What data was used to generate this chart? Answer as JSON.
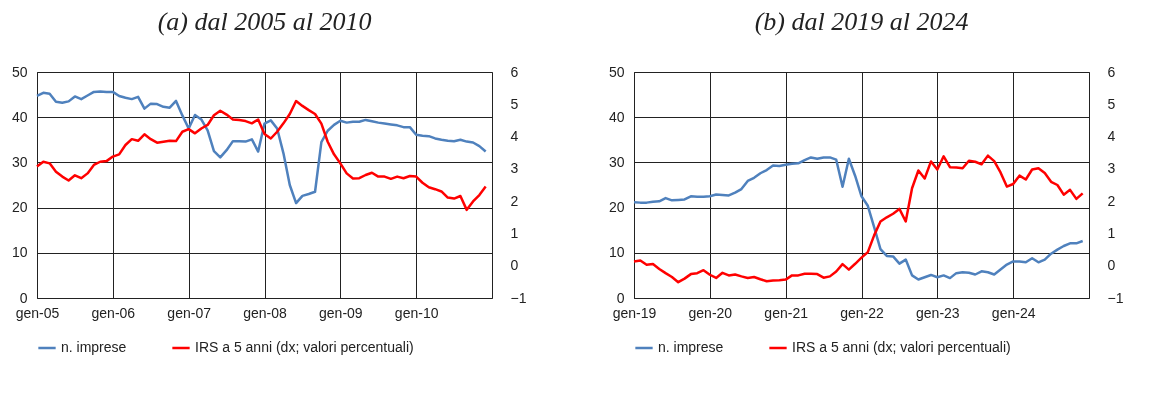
{
  "chart_data": [
    {
      "type": "line",
      "title": "(a) dal 2005 al 2010",
      "categories": [
        "gen-05",
        null,
        null,
        null,
        null,
        null,
        null,
        null,
        null,
        null,
        null,
        null,
        "gen-06",
        null,
        null,
        null,
        null,
        null,
        null,
        null,
        null,
        null,
        null,
        null,
        "gen-07",
        null,
        null,
        null,
        null,
        null,
        null,
        null,
        null,
        null,
        null,
        null,
        "gen-08",
        null,
        null,
        null,
        null,
        null,
        null,
        null,
        null,
        null,
        null,
        null,
        "gen-09",
        null,
        null,
        null,
        null,
        null,
        null,
        null,
        null,
        null,
        null,
        null,
        "gen-10",
        null,
        null,
        null,
        null,
        null,
        null,
        null,
        null,
        null,
        null,
        null
      ],
      "series": [
        {
          "name": "n. imprese",
          "color": "#4f81bd",
          "values": [
            44.7,
            45.4,
            45.2,
            43.4,
            43.2,
            43.5,
            44.6,
            44.0,
            44.8,
            45.6,
            45.7,
            45.6,
            45.6,
            44.7,
            44.3,
            44.0,
            44.5,
            41.9,
            43.0,
            42.9,
            42.3,
            42.1,
            43.6,
            40.4,
            37.5,
            40.5,
            39.5,
            37.1,
            32.5,
            31.1,
            32.7,
            34.7,
            34.7,
            34.6,
            35.1,
            32.4,
            38.6,
            39.3,
            37.5,
            32.0,
            25.0,
            21.0,
            22.6,
            23.0,
            23.5,
            34.5,
            37.0,
            38.3,
            39.2,
            38.8,
            39.0,
            39.0,
            39.4,
            39.1,
            38.8,
            38.6,
            38.4,
            38.2,
            37.8,
            37.8,
            36.1,
            35.9,
            35.8,
            35.3,
            35.0,
            34.8,
            34.7,
            35.0,
            34.6,
            34.4,
            33.6,
            32.4
          ]
        },
        {
          "name": "IRS a 5 anni (dx; valori percentuali)",
          "color": "#ff0000",
          "axis": "y2",
          "values": [
            3.07,
            3.22,
            3.17,
            2.91,
            2.76,
            2.64,
            2.8,
            2.71,
            2.86,
            3.12,
            3.22,
            3.24,
            3.38,
            3.45,
            3.74,
            3.92,
            3.87,
            4.07,
            3.92,
            3.81,
            3.84,
            3.87,
            3.86,
            4.15,
            4.23,
            4.1,
            4.25,
            4.36,
            4.66,
            4.8,
            4.68,
            4.53,
            4.51,
            4.48,
            4.41,
            4.53,
            4.08,
            3.94,
            4.15,
            4.41,
            4.7,
            5.1,
            4.95,
            4.82,
            4.7,
            4.4,
            3.84,
            3.45,
            3.17,
            2.86,
            2.7,
            2.71,
            2.81,
            2.88,
            2.76,
            2.76,
            2.69,
            2.76,
            2.71,
            2.78,
            2.76,
            2.57,
            2.43,
            2.37,
            2.3,
            2.11,
            2.08,
            2.16,
            1.73,
            1.99,
            2.19,
            2.45
          ]
        }
      ],
      "ylim": [
        0,
        50
      ],
      "yticks": [
        0,
        10,
        20,
        30,
        40,
        50
      ],
      "y2lim": [
        -1,
        6
      ],
      "y2ticks": [
        -1,
        0,
        1,
        2,
        3,
        4,
        5,
        6
      ],
      "grid": true,
      "legend": "bottom"
    },
    {
      "type": "line",
      "title": "(b) dal 2019 al 2024",
      "categories": [
        "gen-19",
        null,
        null,
        null,
        null,
        null,
        null,
        null,
        null,
        null,
        null,
        null,
        "gen-20",
        null,
        null,
        null,
        null,
        null,
        null,
        null,
        null,
        null,
        null,
        null,
        "gen-21",
        null,
        null,
        null,
        null,
        null,
        null,
        null,
        null,
        null,
        null,
        null,
        "gen-22",
        null,
        null,
        null,
        null,
        null,
        null,
        null,
        null,
        null,
        null,
        null,
        "gen-23",
        null,
        null,
        null,
        null,
        null,
        null,
        null,
        null,
        null,
        null,
        null,
        "gen-24",
        null,
        null,
        null,
        null,
        null,
        null,
        null,
        null,
        null,
        null,
        null
      ],
      "series": [
        {
          "name": "n. imprese",
          "color": "#4f81bd",
          "values": [
            21.2,
            21.1,
            21.1,
            21.3,
            21.4,
            22.1,
            21.6,
            21.7,
            21.8,
            22.5,
            22.4,
            22.4,
            22.5,
            22.9,
            22.8,
            22.7,
            23.3,
            24.1,
            25.9,
            26.6,
            27.6,
            28.3,
            29.3,
            29.2,
            29.5,
            29.7,
            29.8,
            30.5,
            31.1,
            30.8,
            31.1,
            31.1,
            30.6,
            24.6,
            30.8,
            27.0,
            22.5,
            20.4,
            15.7,
            10.8,
            9.3,
            9.2,
            7.6,
            8.5,
            5.0,
            4.1,
            4.6,
            5.1,
            4.6,
            5.0,
            4.4,
            5.5,
            5.7,
            5.6,
            5.2,
            5.9,
            5.7,
            5.2,
            6.3,
            7.4,
            8.1,
            8.1,
            7.9,
            8.8,
            7.9,
            8.5,
            9.8,
            10.7,
            11.5,
            12.1,
            12.1,
            12.6
          ]
        },
        {
          "name": "IRS a 5 anni (dx; valori percentuali)",
          "color": "#ff0000",
          "axis": "y2",
          "values": [
            0.13,
            0.16,
            0.03,
            0.05,
            -0.1,
            -0.23,
            -0.35,
            -0.51,
            -0.4,
            -0.26,
            -0.23,
            -0.14,
            -0.28,
            -0.38,
            -0.22,
            -0.3,
            -0.27,
            -0.33,
            -0.38,
            -0.35,
            -0.42,
            -0.48,
            -0.46,
            -0.45,
            -0.43,
            -0.3,
            -0.3,
            -0.25,
            -0.25,
            -0.26,
            -0.37,
            -0.33,
            -0.18,
            0.05,
            -0.12,
            0.06,
            0.25,
            0.42,
            0.94,
            1.37,
            1.5,
            1.61,
            1.76,
            1.37,
            2.4,
            2.95,
            2.7,
            3.23,
            2.98,
            3.39,
            3.05,
            3.04,
            3.02,
            3.25,
            3.22,
            3.14,
            3.41,
            3.24,
            2.89,
            2.45,
            2.53,
            2.79,
            2.67,
            2.98,
            3.02,
            2.87,
            2.6,
            2.5,
            2.2,
            2.35,
            2.07,
            2.24
          ]
        }
      ],
      "ylim": [
        0,
        50
      ],
      "yticks": [
        0,
        10,
        20,
        30,
        40,
        50
      ],
      "y2lim": [
        -1,
        6
      ],
      "y2ticks": [
        -1,
        0,
        1,
        2,
        3,
        4,
        5,
        6
      ],
      "grid": true,
      "legend": "bottom"
    }
  ]
}
